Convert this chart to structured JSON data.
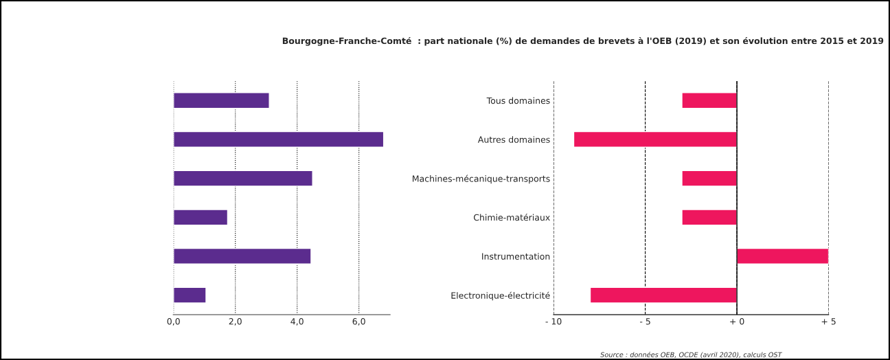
{
  "chart_data": [
    {
      "type": "bar",
      "orientation": "horizontal",
      "title": "Bourgogne-Franche-Comté  : part nationale (%) de demandes de brevets à l'OEB (2019) et son évolution entre 2015 et 2019",
      "categories": [
        null,
        null,
        null,
        null,
        null,
        null
      ],
      "values": [
        3.1,
        6.8,
        4.5,
        1.75,
        4.45,
        1.05
      ],
      "color": "#5b2c8e",
      "xlim": [
        0,
        7
      ],
      "xticks": [
        {
          "value": 0,
          "label": "0,0"
        },
        {
          "value": 2,
          "label": "2,0"
        },
        {
          "value": 4,
          "label": "4,0"
        },
        {
          "value": 6,
          "label": "6,0"
        }
      ],
      "grid": "x",
      "tick_labels": "x"
    },
    {
      "type": "bar",
      "orientation": "horizontal",
      "categories": [
        "Tous domaines",
        "Autres domaines",
        "Machines-mécanique-transports",
        "Chimie-matériaux",
        "Instrumentation",
        "Electronique-électricité"
      ],
      "values": [
        -3,
        -8.9,
        -3,
        -3,
        5,
        -8
      ],
      "color": "#ee165e",
      "xlim": [
        -10,
        5
      ],
      "xticks": [
        {
          "value": -10,
          "label": "- 10"
        },
        {
          "value": -5,
          "label": "- 5"
        },
        {
          "value": 0,
          "label": "+ 0"
        },
        {
          "value": 5,
          "label": "+ 5"
        }
      ],
      "grid": "x",
      "annotations": [
        "Source : données OEB, OCDE (avril 2020), calculs OST"
      ]
    }
  ]
}
